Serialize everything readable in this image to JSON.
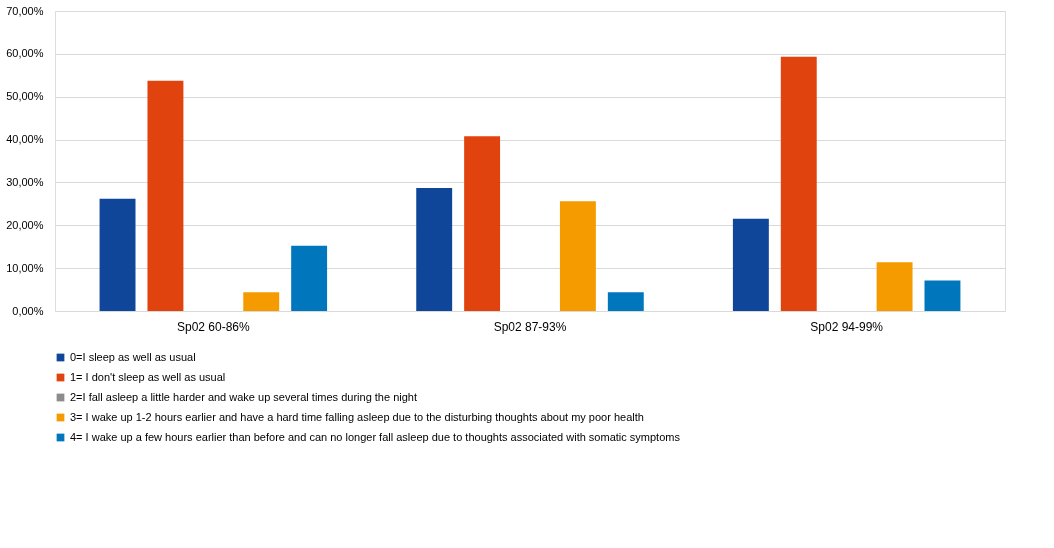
{
  "chart_data": {
    "type": "bar",
    "categories": [
      "Sp02  60-86%",
      "Sp02 87-93%",
      "Sp02 94-99%"
    ],
    "series": [
      {
        "name": "0=I sleep as well as usual",
        "color": "#0f4699",
        "values": [
          26.2,
          28.7,
          21.5
        ]
      },
      {
        "name": "1= I don't sleep as well as usual",
        "color": "#e0430e",
        "values": [
          53.7,
          40.8,
          59.3
        ]
      },
      {
        "name": "2=I fall asleep a little harder and wake up several times during the night",
        "color": "#8c8c8c",
        "values": [
          0,
          0,
          0
        ]
      },
      {
        "name": "3= I wake up 1-2 hours earlier and have a hard time falling asleep due to the disturbing thoughts about my poor health",
        "color": "#f59b00",
        "values": [
          4.4,
          25.6,
          11.4
        ]
      },
      {
        "name": "4= I wake up a few hours earlier than before and can no longer fall asleep due to thoughts associated with somatic symptoms",
        "color": "#0077bd",
        "values": [
          15.2,
          4.4,
          7.1
        ]
      }
    ],
    "ylim": [
      0,
      70
    ],
    "yticks": [
      {
        "value": 0,
        "label": "0,00%"
      },
      {
        "value": 10,
        "label": "10,00%"
      },
      {
        "value": 20,
        "label": "20,00%"
      },
      {
        "value": 30,
        "label": "30,00%"
      },
      {
        "value": 40,
        "label": "40,00%"
      },
      {
        "value": 50,
        "label": "50,00%"
      },
      {
        "value": 60,
        "label": "60,00%"
      },
      {
        "value": 70,
        "label": "70,00%"
      }
    ],
    "grid": "y",
    "legend": "bottom"
  }
}
